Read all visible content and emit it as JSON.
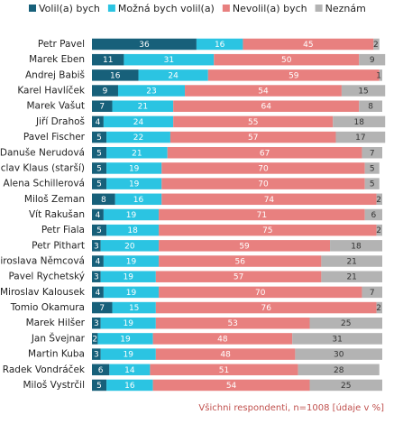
{
  "chart_data": {
    "type": "bar",
    "orientation": "horizontal",
    "stacked": true,
    "categories": [
      "Petr Pavel",
      "Marek Eben",
      "Andrej Babiš",
      "Karel Havlíček",
      "Marek Vašut",
      "Jiří Drahoš",
      "Pavel Fischer",
      "Danuše Nerudová",
      "Václav Klaus (starší)",
      "Alena Schillerová",
      "Miloš Zeman",
      "Vít Rakušan",
      "Petr Fiala",
      "Petr Pithart",
      "Miroslava Němcová",
      "Pavel Rychetský",
      "Miroslav Kalousek",
      "Tomio Okamura",
      "Marek Hilšer",
      "Jan Švejnar",
      "Martin Kuba",
      "Radek Vondráček",
      "Miloš Vystrčil"
    ],
    "series": [
      {
        "name": "Volil(a) bych",
        "color": "#17607a",
        "values": [
          36,
          11,
          16,
          9,
          7,
          4,
          5,
          5,
          5,
          5,
          8,
          4,
          5,
          3,
          4,
          3,
          4,
          7,
          3,
          2,
          3,
          6,
          5
        ]
      },
      {
        "name": "Možná bych volil(a)",
        "color": "#2bc4e2",
        "values": [
          16,
          31,
          24,
          23,
          21,
          24,
          22,
          21,
          19,
          19,
          16,
          19,
          18,
          20,
          19,
          19,
          19,
          15,
          19,
          19,
          19,
          14,
          16
        ]
      },
      {
        "name": "Nevolil(a) bych",
        "color": "#e8807f",
        "values": [
          45,
          50,
          59,
          54,
          64,
          55,
          57,
          67,
          70,
          70,
          74,
          71,
          75,
          59,
          56,
          57,
          70,
          76,
          53,
          48,
          48,
          51,
          54
        ]
      },
      {
        "name": "Neznám",
        "color": "#b3b3b3",
        "values": [
          2,
          9,
          1,
          15,
          8,
          18,
          17,
          7,
          5,
          5,
          2,
          6,
          2,
          18,
          21,
          21,
          7,
          2,
          25,
          31,
          30,
          28,
          25
        ]
      }
    ],
    "legend": "top",
    "note": "Všichni respondenti, n=1008 [údaje v %]"
  }
}
